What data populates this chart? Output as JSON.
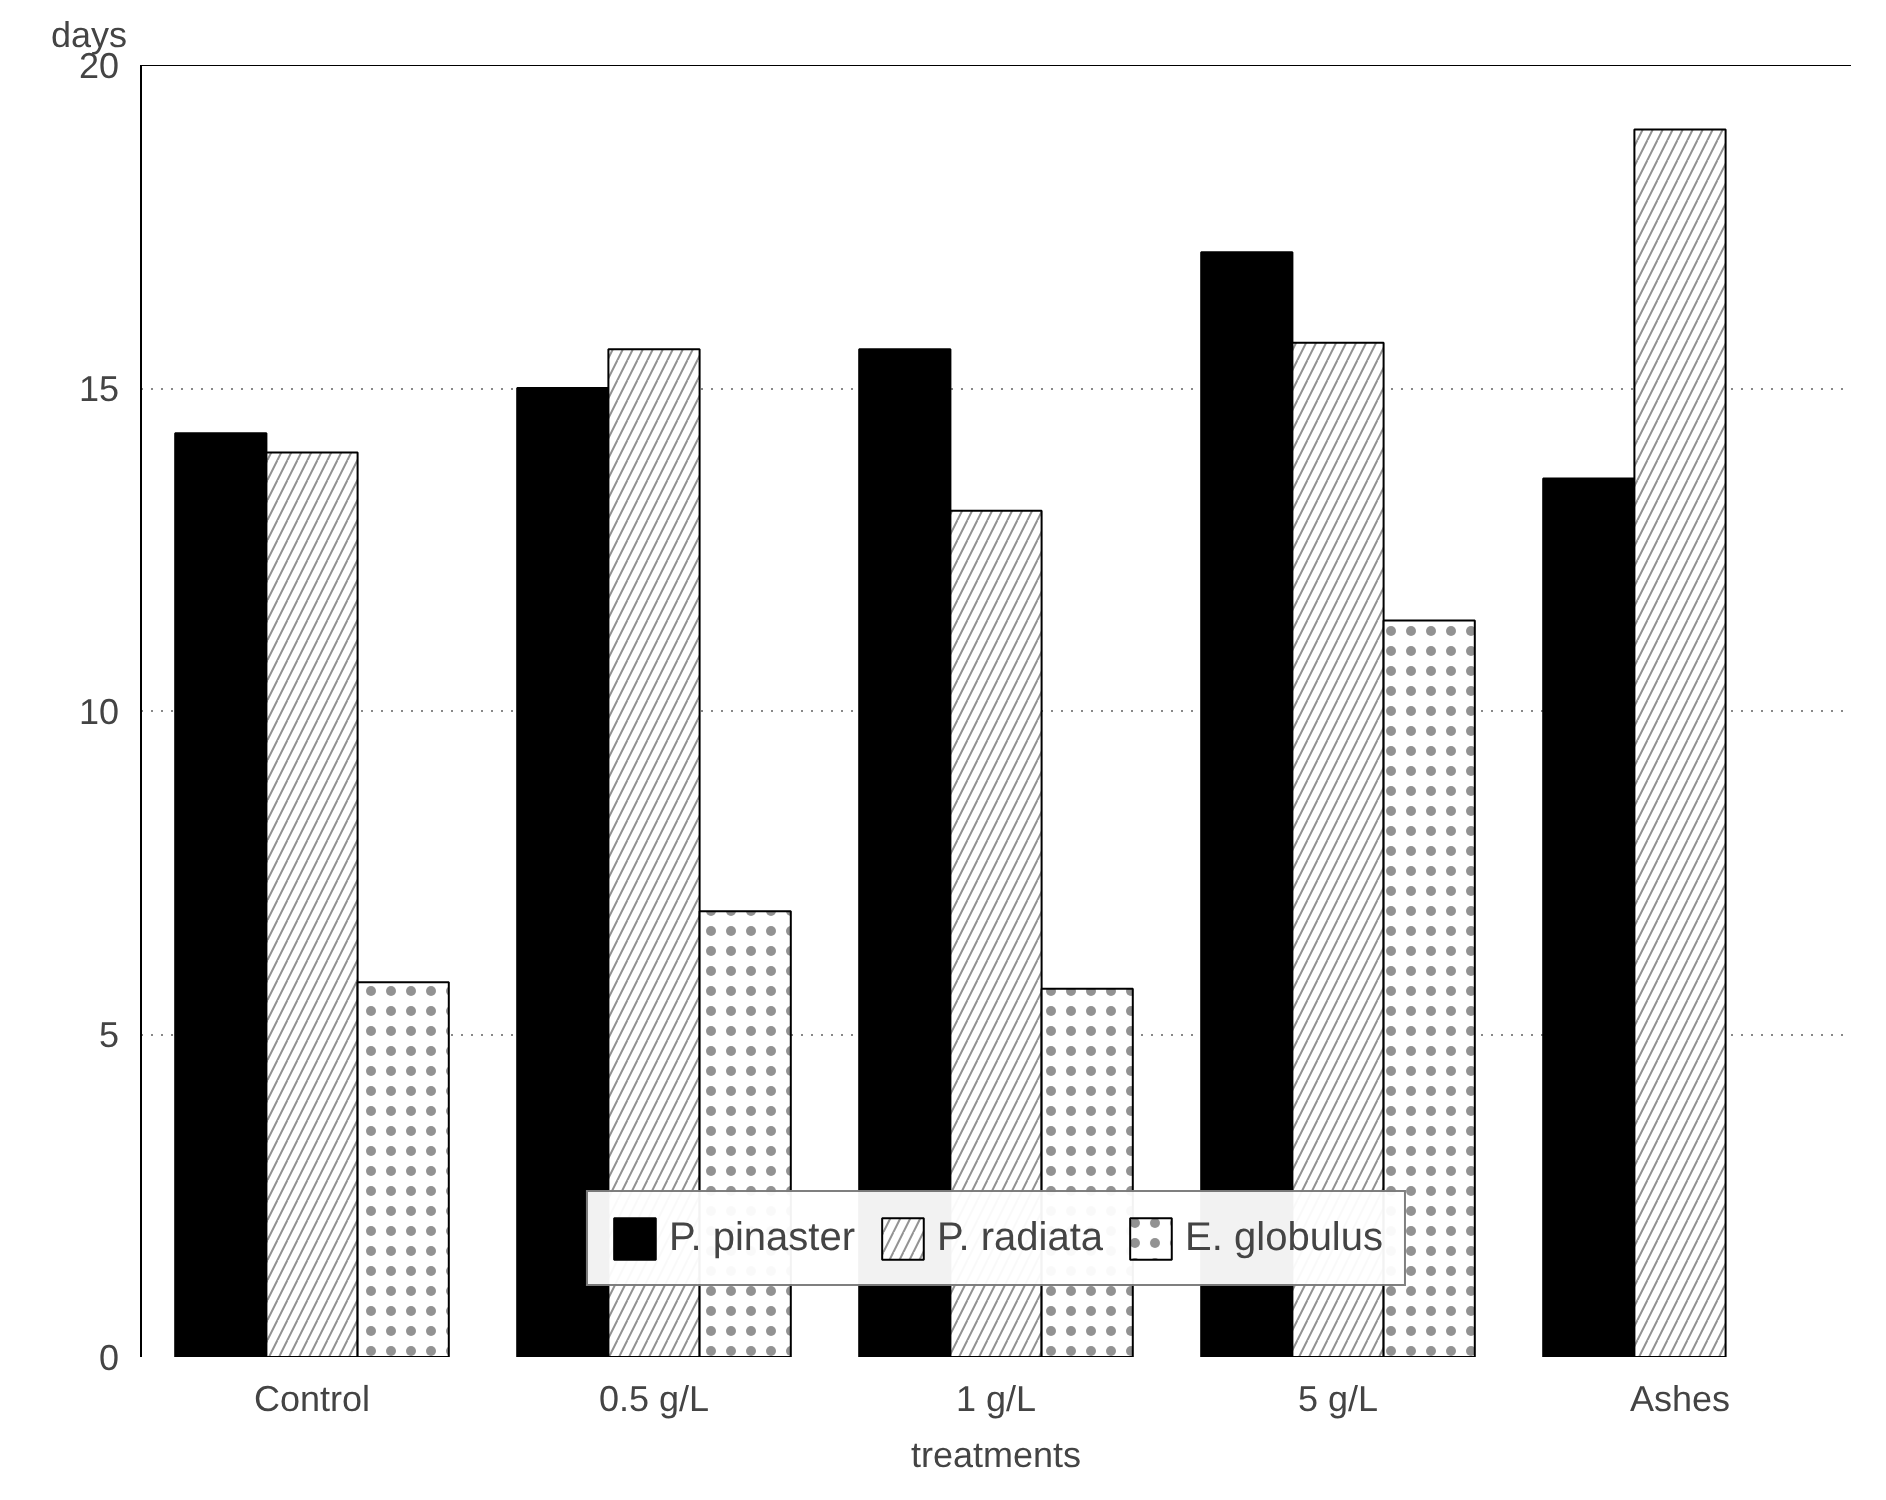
{
  "chart_data": {
    "type": "bar",
    "xlabel": "treatments",
    "ylabel": "days",
    "categories": [
      "Control",
      "0.5 g/L",
      "1 g/L",
      "5 g/L",
      "Ashes"
    ],
    "series": [
      {
        "name": "P. pinaster",
        "color": "#000000",
        "values": [
          14.3,
          15.0,
          15.6,
          17.1,
          13.6
        ]
      },
      {
        "name": "P. radiata",
        "color": "#ffffff",
        "values": [
          14.0,
          15.6,
          13.1,
          15.7,
          19.0
        ]
      },
      {
        "name": "E. globulus",
        "color": "#ffffff",
        "values": [
          5.8,
          6.9,
          5.7,
          11.4,
          null
        ]
      }
    ],
    "ylim": [
      0,
      20
    ],
    "yticks": [
      0,
      5,
      10,
      15,
      20
    ],
    "grid": "y",
    "legend": "bottom"
  }
}
